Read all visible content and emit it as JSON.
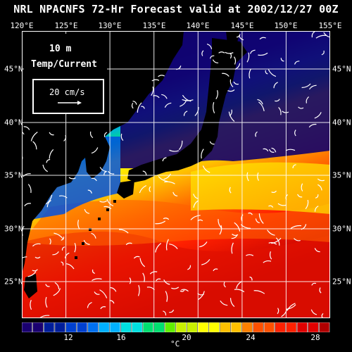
{
  "title": "NRL NPACNFS 72-Hr Forecast valid at 2002/12/27 00Z",
  "map": {
    "depth_label": "10   m",
    "variable_label": "Temp/Current",
    "current_scale_label": "20 cm/s",
    "lon_labels": [
      "120°E",
      "125°E",
      "130°E",
      "135°E",
      "140°E",
      "145°E",
      "150°E",
      "155°E"
    ],
    "lat_labels": [
      "45°N",
      "40°N",
      "35°N",
      "30°N",
      "25°N"
    ],
    "colors": {
      "land": "#000000",
      "ocean_scale": [
        "#1a0070",
        "#001e9a",
        "#0040d0",
        "#0070f0",
        "#00b0ff",
        "#00e0e0",
        "#00e070",
        "#60f000",
        "#c8f000",
        "#ffff00",
        "#ffc000",
        "#ff8000",
        "#ff5000",
        "#ff2000",
        "#e00000",
        "#b00000"
      ]
    }
  },
  "colorbar": {
    "tick_labels": [
      "12",
      "16",
      "20",
      "24",
      "28"
    ],
    "unit": "°C"
  }
}
